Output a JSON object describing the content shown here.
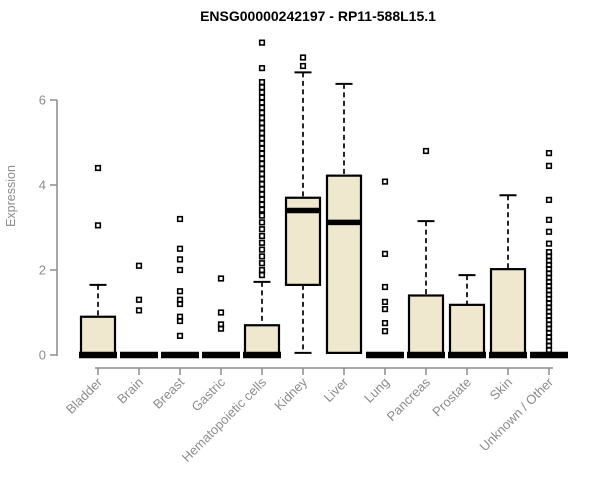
{
  "chart_data": {
    "type": "boxplot",
    "title": "ENSG00000242197 - RP11-588L15.1",
    "ylabel": "Expression",
    "xlabel": "",
    "ylim": [
      0,
      7.5
    ],
    "yticks": [
      0,
      2,
      4,
      6
    ],
    "grid": false,
    "legend": "none",
    "colors": {
      "box_fill": "#efe8ce",
      "box_stroke": "#000000",
      "median": "#000000",
      "whisker": "#000000",
      "outlier": "#000000",
      "axis": "#8c8c8c",
      "title_text": "#000000",
      "axis_text": "#8c8c8c"
    },
    "categories": [
      "Bladder",
      "Brain",
      "Breast",
      "Gastric",
      "Hematopoietic cells",
      "Kidney",
      "Liver",
      "Lung",
      "Pancreas",
      "Prostate",
      "Skin",
      "Unknown / Other"
    ],
    "series": [
      {
        "category": "Bladder",
        "q1": 0,
        "median": 0,
        "q3": 0.9,
        "whisker_low": 0,
        "whisker_high": 1.65,
        "outliers": [
          4.4,
          3.05
        ]
      },
      {
        "category": "Brain",
        "q1": 0,
        "median": 0,
        "q3": 0,
        "whisker_low": 0,
        "whisker_high": 0,
        "outliers": [
          2.1,
          1.3,
          1.05
        ]
      },
      {
        "category": "Breast",
        "q1": 0,
        "median": 0,
        "q3": 0,
        "whisker_low": 0,
        "whisker_high": 0,
        "outliers": [
          3.2,
          2.5,
          2.25,
          2.0,
          1.5,
          1.3,
          1.2,
          0.9,
          0.8,
          0.45
        ]
      },
      {
        "category": "Gastric",
        "q1": 0,
        "median": 0,
        "q3": 0,
        "whisker_low": 0,
        "whisker_high": 0,
        "outliers": [
          1.8,
          1.0,
          0.72,
          0.62
        ]
      },
      {
        "category": "Hematopoietic cells",
        "q1": 0,
        "median": 0,
        "q3": 0.7,
        "whisker_low": 0,
        "whisker_high": 1.72,
        "outliers": [
          7.35,
          6.75,
          6.42,
          6.3,
          6.18,
          6.06,
          5.94,
          5.82,
          5.7,
          5.58,
          5.46,
          5.34,
          5.22,
          5.1,
          4.98,
          4.86,
          4.74,
          4.62,
          4.5,
          4.38,
          4.26,
          4.14,
          4.02,
          3.9,
          3.78,
          3.66,
          3.54,
          3.42,
          3.28,
          3.12,
          2.96,
          2.8,
          2.64,
          2.48,
          2.32,
          2.16,
          2.0,
          1.88
        ]
      },
      {
        "category": "Kidney",
        "q1": 1.65,
        "median": 3.4,
        "q3": 3.7,
        "whisker_low": 0.05,
        "whisker_high": 6.65,
        "outliers": [
          7.0,
          6.8
        ]
      },
      {
        "category": "Liver",
        "q1": 0.05,
        "median": 3.12,
        "q3": 4.22,
        "whisker_low": 0.05,
        "whisker_high": 6.38,
        "outliers": []
      },
      {
        "category": "Lung",
        "q1": 0,
        "median": 0,
        "q3": 0,
        "whisker_low": 0,
        "whisker_high": 0,
        "outliers": [
          4.08,
          2.38,
          1.6,
          1.25,
          1.08,
          0.75,
          0.56
        ]
      },
      {
        "category": "Pancreas",
        "q1": 0,
        "median": 0,
        "q3": 1.4,
        "whisker_low": 0,
        "whisker_high": 3.15,
        "outliers": [
          4.8
        ]
      },
      {
        "category": "Prostate",
        "q1": 0,
        "median": 0,
        "q3": 1.18,
        "whisker_low": 0,
        "whisker_high": 1.88,
        "outliers": []
      },
      {
        "category": "Skin",
        "q1": 0,
        "median": 0,
        "q3": 2.02,
        "whisker_low": 0,
        "whisker_high": 3.76,
        "outliers": []
      },
      {
        "category": "Unknown / Other",
        "q1": 0,
        "median": 0,
        "q3": 0,
        "whisker_low": 0,
        "whisker_high": 0,
        "outliers": [
          4.75,
          4.45,
          3.65,
          3.18,
          2.9,
          2.62,
          2.42,
          2.32,
          2.22,
          2.12,
          2.02,
          1.92,
          1.82,
          1.72,
          1.62,
          1.52,
          1.42,
          1.32,
          1.22,
          1.12,
          1.02,
          0.92,
          0.82,
          0.72,
          0.62,
          0.52,
          0.42,
          0.32,
          0.22,
          0.12
        ]
      }
    ]
  }
}
